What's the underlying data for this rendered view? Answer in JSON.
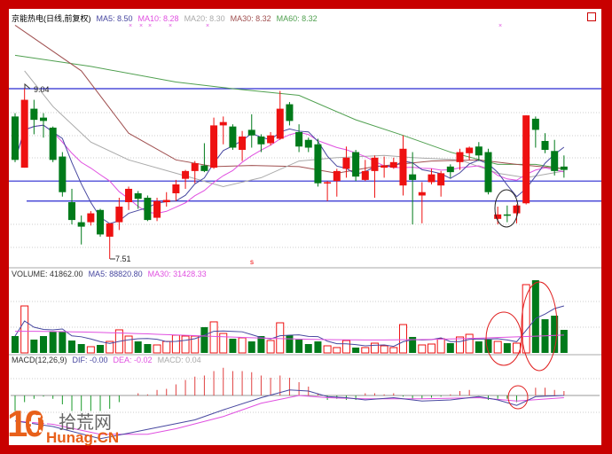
{
  "header": {
    "title": "京能热电(日线,前复权)",
    "ma5": "MA5: 8.50",
    "ma10": "MA10: 8.28",
    "ma20": "MA20: 8.30",
    "ma30": "MA30: 8.32",
    "ma60": "MA60: 8.32"
  },
  "volume_header": {
    "volume": "VOLUME: 41862.00",
    "ma5": "MA5: 88820.80",
    "ma30": "MA30: 31428.33"
  },
  "macd_header": {
    "title": "MACD(12,26,9)",
    "dif": "DIF: -0.00",
    "dea": "DEA: -0.02",
    "macd": "MACD: 0.04"
  },
  "annotations": {
    "high_label": "9.04",
    "low_label": "7.51",
    "marker": "s"
  },
  "logo": {
    "number": "10",
    "cn": "拾荒网",
    "domain": "Hunag.CN"
  },
  "colors": {
    "up": "#ee1111",
    "down": "#007a1a",
    "ma5": "#4848a0",
    "ma10": "#e050e0",
    "ma20": "#aaaaaa",
    "ma30": "#a05050",
    "ma60": "#50a050",
    "hline": "#2a2ad0",
    "frame": "#c80000"
  },
  "chart_data": [
    {
      "type": "candlestick",
      "title": "京能热电(日线,前复权)",
      "ohlc_fields": [
        "open",
        "high",
        "low",
        "close"
      ],
      "ohlc": [
        [
          8.79,
          8.82,
          8.38,
          8.4
        ],
        [
          8.33,
          9.04,
          8.33,
          8.94
        ],
        [
          8.86,
          8.94,
          8.63,
          8.76
        ],
        [
          8.78,
          8.82,
          8.6,
          8.75
        ],
        [
          8.69,
          8.7,
          8.38,
          8.4
        ],
        [
          8.43,
          8.47,
          8.07,
          8.11
        ],
        [
          8.02,
          8.14,
          7.82,
          7.86
        ],
        [
          7.84,
          7.9,
          7.64,
          7.8
        ],
        [
          7.84,
          7.94,
          7.81,
          7.92
        ],
        [
          7.95,
          7.96,
          7.71,
          7.73
        ],
        [
          7.71,
          7.83,
          7.51,
          7.83
        ],
        [
          7.84,
          8.06,
          7.77,
          7.98
        ],
        [
          8.02,
          8.16,
          7.95,
          8.14
        ],
        [
          8.1,
          8.12,
          7.96,
          8.05
        ],
        [
          8.06,
          8.08,
          7.85,
          7.86
        ],
        [
          7.88,
          8.06,
          7.85,
          8.03
        ],
        [
          8.02,
          8.11,
          7.98,
          8.04
        ],
        [
          8.1,
          8.22,
          8.03,
          8.18
        ],
        [
          8.23,
          8.31,
          8.14,
          8.3
        ],
        [
          8.3,
          8.39,
          8.19,
          8.37
        ],
        [
          8.35,
          8.55,
          8.29,
          8.3
        ],
        [
          8.33,
          8.78,
          8.32,
          8.71
        ],
        [
          8.71,
          8.79,
          8.54,
          8.74
        ],
        [
          8.7,
          8.72,
          8.49,
          8.51
        ],
        [
          8.49,
          8.66,
          8.39,
          8.61
        ],
        [
          8.67,
          8.81,
          8.51,
          8.62
        ],
        [
          8.61,
          8.63,
          8.47,
          8.54
        ],
        [
          8.55,
          8.65,
          8.53,
          8.62
        ],
        [
          8.59,
          9.02,
          8.58,
          8.86
        ],
        [
          8.9,
          8.92,
          8.71,
          8.75
        ],
        [
          8.65,
          8.72,
          8.47,
          8.52
        ],
        [
          8.58,
          8.6,
          8.47,
          8.51
        ],
        [
          8.54,
          8.59,
          8.16,
          8.19
        ],
        [
          8.19,
          8.21,
          8.03,
          8.2
        ],
        [
          8.21,
          8.32,
          8.07,
          8.3
        ],
        [
          8.32,
          8.52,
          8.24,
          8.42
        ],
        [
          8.47,
          8.49,
          8.21,
          8.25
        ],
        [
          8.22,
          8.4,
          8.21,
          8.3
        ],
        [
          8.3,
          8.44,
          8.06,
          8.42
        ],
        [
          8.33,
          8.43,
          8.24,
          8.35
        ],
        [
          8.33,
          8.42,
          8.32,
          8.38
        ],
        [
          8.17,
          8.62,
          8.08,
          8.5
        ],
        [
          8.27,
          8.47,
          7.82,
          8.22
        ],
        [
          8.08,
          8.2,
          7.83,
          8.11
        ],
        [
          8.2,
          8.32,
          8.18,
          8.27
        ],
        [
          8.17,
          8.3,
          8.07,
          8.28
        ],
        [
          8.34,
          8.36,
          8.24,
          8.29
        ],
        [
          8.38,
          8.5,
          8.31,
          8.47
        ],
        [
          8.46,
          8.52,
          8.4,
          8.51
        ],
        [
          8.52,
          8.56,
          8.39,
          8.44
        ],
        [
          8.47,
          8.5,
          8.09,
          8.11
        ],
        [
          7.87,
          7.98,
          7.82,
          7.91
        ],
        [
          7.91,
          7.99,
          7.84,
          7.9
        ],
        [
          7.92,
          8.0,
          7.83,
          7.99
        ],
        [
          8.01,
          8.8,
          8.0,
          8.8
        ],
        [
          8.77,
          8.79,
          8.51,
          8.67
        ],
        [
          8.57,
          8.64,
          8.46,
          8.49
        ],
        [
          8.48,
          8.58,
          8.26,
          8.3
        ],
        [
          8.34,
          8.44,
          8.24,
          8.31
        ]
      ],
      "ma_lines": {
        "MA20": [
          [
            2,
            9.2
          ],
          [
            5,
            8.88
          ],
          [
            9,
            8.56
          ],
          [
            13,
            8.4
          ],
          [
            18,
            8.28
          ],
          [
            23,
            8.16
          ],
          [
            27,
            8.24
          ],
          [
            31,
            8.39
          ],
          [
            35,
            8.42
          ],
          [
            40,
            8.44
          ],
          [
            43,
            8.42
          ],
          [
            48,
            8.4
          ],
          [
            52,
            8.28
          ],
          [
            55,
            8.24
          ],
          [
            59,
            8.3
          ]
        ],
        "MA30": [
          [
            1,
            9.61
          ],
          [
            8,
            9.2
          ],
          [
            13,
            8.64
          ],
          [
            18,
            8.4
          ],
          [
            22,
            8.34
          ],
          [
            26,
            8.35
          ],
          [
            31,
            8.34
          ],
          [
            35,
            8.28
          ],
          [
            39,
            8.34
          ],
          [
            45,
            8.39
          ],
          [
            50,
            8.4
          ],
          [
            54,
            8.36
          ],
          [
            59,
            8.32
          ]
        ],
        "MA60": [
          [
            1,
            9.34
          ],
          [
            9,
            9.24
          ],
          [
            18,
            9.1
          ],
          [
            24,
            9.04
          ],
          [
            31,
            8.98
          ],
          [
            37,
            8.76
          ],
          [
            42,
            8.62
          ],
          [
            47,
            8.47
          ],
          [
            52,
            8.36
          ],
          [
            56,
            8.36
          ],
          [
            59,
            8.32
          ]
        ]
      },
      "horizontal_lines": [
        9.04,
        8.21,
        8.03
      ],
      "ylim": [
        7.5,
        9.7
      ]
    },
    {
      "type": "bar",
      "title": "VOLUME",
      "values": [
        30600,
        85300,
        24200,
        30600,
        38600,
        38600,
        22500,
        16100,
        11300,
        14500,
        20900,
        41900,
        30600,
        20900,
        16100,
        14500,
        20900,
        32200,
        30600,
        30600,
        46700,
        56400,
        35400,
        25800,
        27400,
        20900,
        30600,
        22500,
        54700,
        32200,
        24200,
        16100,
        20900,
        12900,
        9700,
        22500,
        9700,
        9700,
        17700,
        12900,
        9700,
        51500,
        29000,
        14500,
        16100,
        25800,
        17700,
        29000,
        33800,
        20900,
        24200,
        20900,
        17700,
        17700,
        124000,
        132000,
        61200,
        67600,
        41862
      ],
      "ma30_level": 31428.33
    },
    {
      "type": "bar",
      "title": "MACD(12,26,9)",
      "histogram": [
        -0.14,
        -0.06,
        -0.03,
        -0.01,
        -0.03,
        -0.08,
        -0.14,
        -0.14,
        -0.14,
        -0.14,
        -0.12,
        -0.06,
        0.0,
        0.02,
        0.01,
        0.05,
        0.06,
        0.1,
        0.14,
        0.17,
        0.18,
        0.22,
        0.25,
        0.22,
        0.22,
        0.21,
        0.18,
        0.16,
        0.18,
        0.16,
        0.12,
        0.08,
        0.02,
        -0.04,
        -0.03,
        -0.04,
        -0.04,
        0.02,
        0.02,
        0.01,
        0.02,
        -0.01,
        -0.03,
        -0.03,
        -0.02,
        -0.01,
        0.01,
        0.04,
        0.05,
        0.0,
        -0.04,
        -0.03,
        -0.03,
        -0.06,
        0.0,
        0.07,
        0.07,
        0.05,
        0.04
      ],
      "DIF": [
        [
          1,
          -0.23
        ],
        [
          5,
          -0.28
        ],
        [
          10,
          -0.39
        ],
        [
          13,
          -0.34
        ],
        [
          20,
          -0.22
        ],
        [
          23,
          -0.13
        ],
        [
          27,
          -0.02
        ],
        [
          30,
          0.05
        ],
        [
          32,
          0.04
        ],
        [
          34,
          -0.01
        ],
        [
          36,
          -0.02
        ],
        [
          38,
          -0.04
        ],
        [
          41,
          -0.02
        ],
        [
          44,
          -0.05
        ],
        [
          47,
          -0.04
        ],
        [
          50,
          -0.01
        ],
        [
          52,
          -0.04
        ],
        [
          54,
          -0.09
        ],
        [
          56,
          -0.01
        ],
        [
          59,
          0.0
        ]
      ],
      "DEA": [
        [
          1,
          -0.23
        ],
        [
          5,
          -0.26
        ],
        [
          10,
          -0.35
        ],
        [
          15,
          -0.35
        ],
        [
          18,
          -0.3
        ],
        [
          23,
          -0.19
        ],
        [
          27,
          -0.07
        ],
        [
          31,
          0.0
        ],
        [
          34,
          -0.02
        ],
        [
          38,
          -0.03
        ],
        [
          44,
          -0.03
        ],
        [
          50,
          -0.02
        ],
        [
          54,
          -0.05
        ],
        [
          59,
          -0.02
        ]
      ]
    }
  ]
}
